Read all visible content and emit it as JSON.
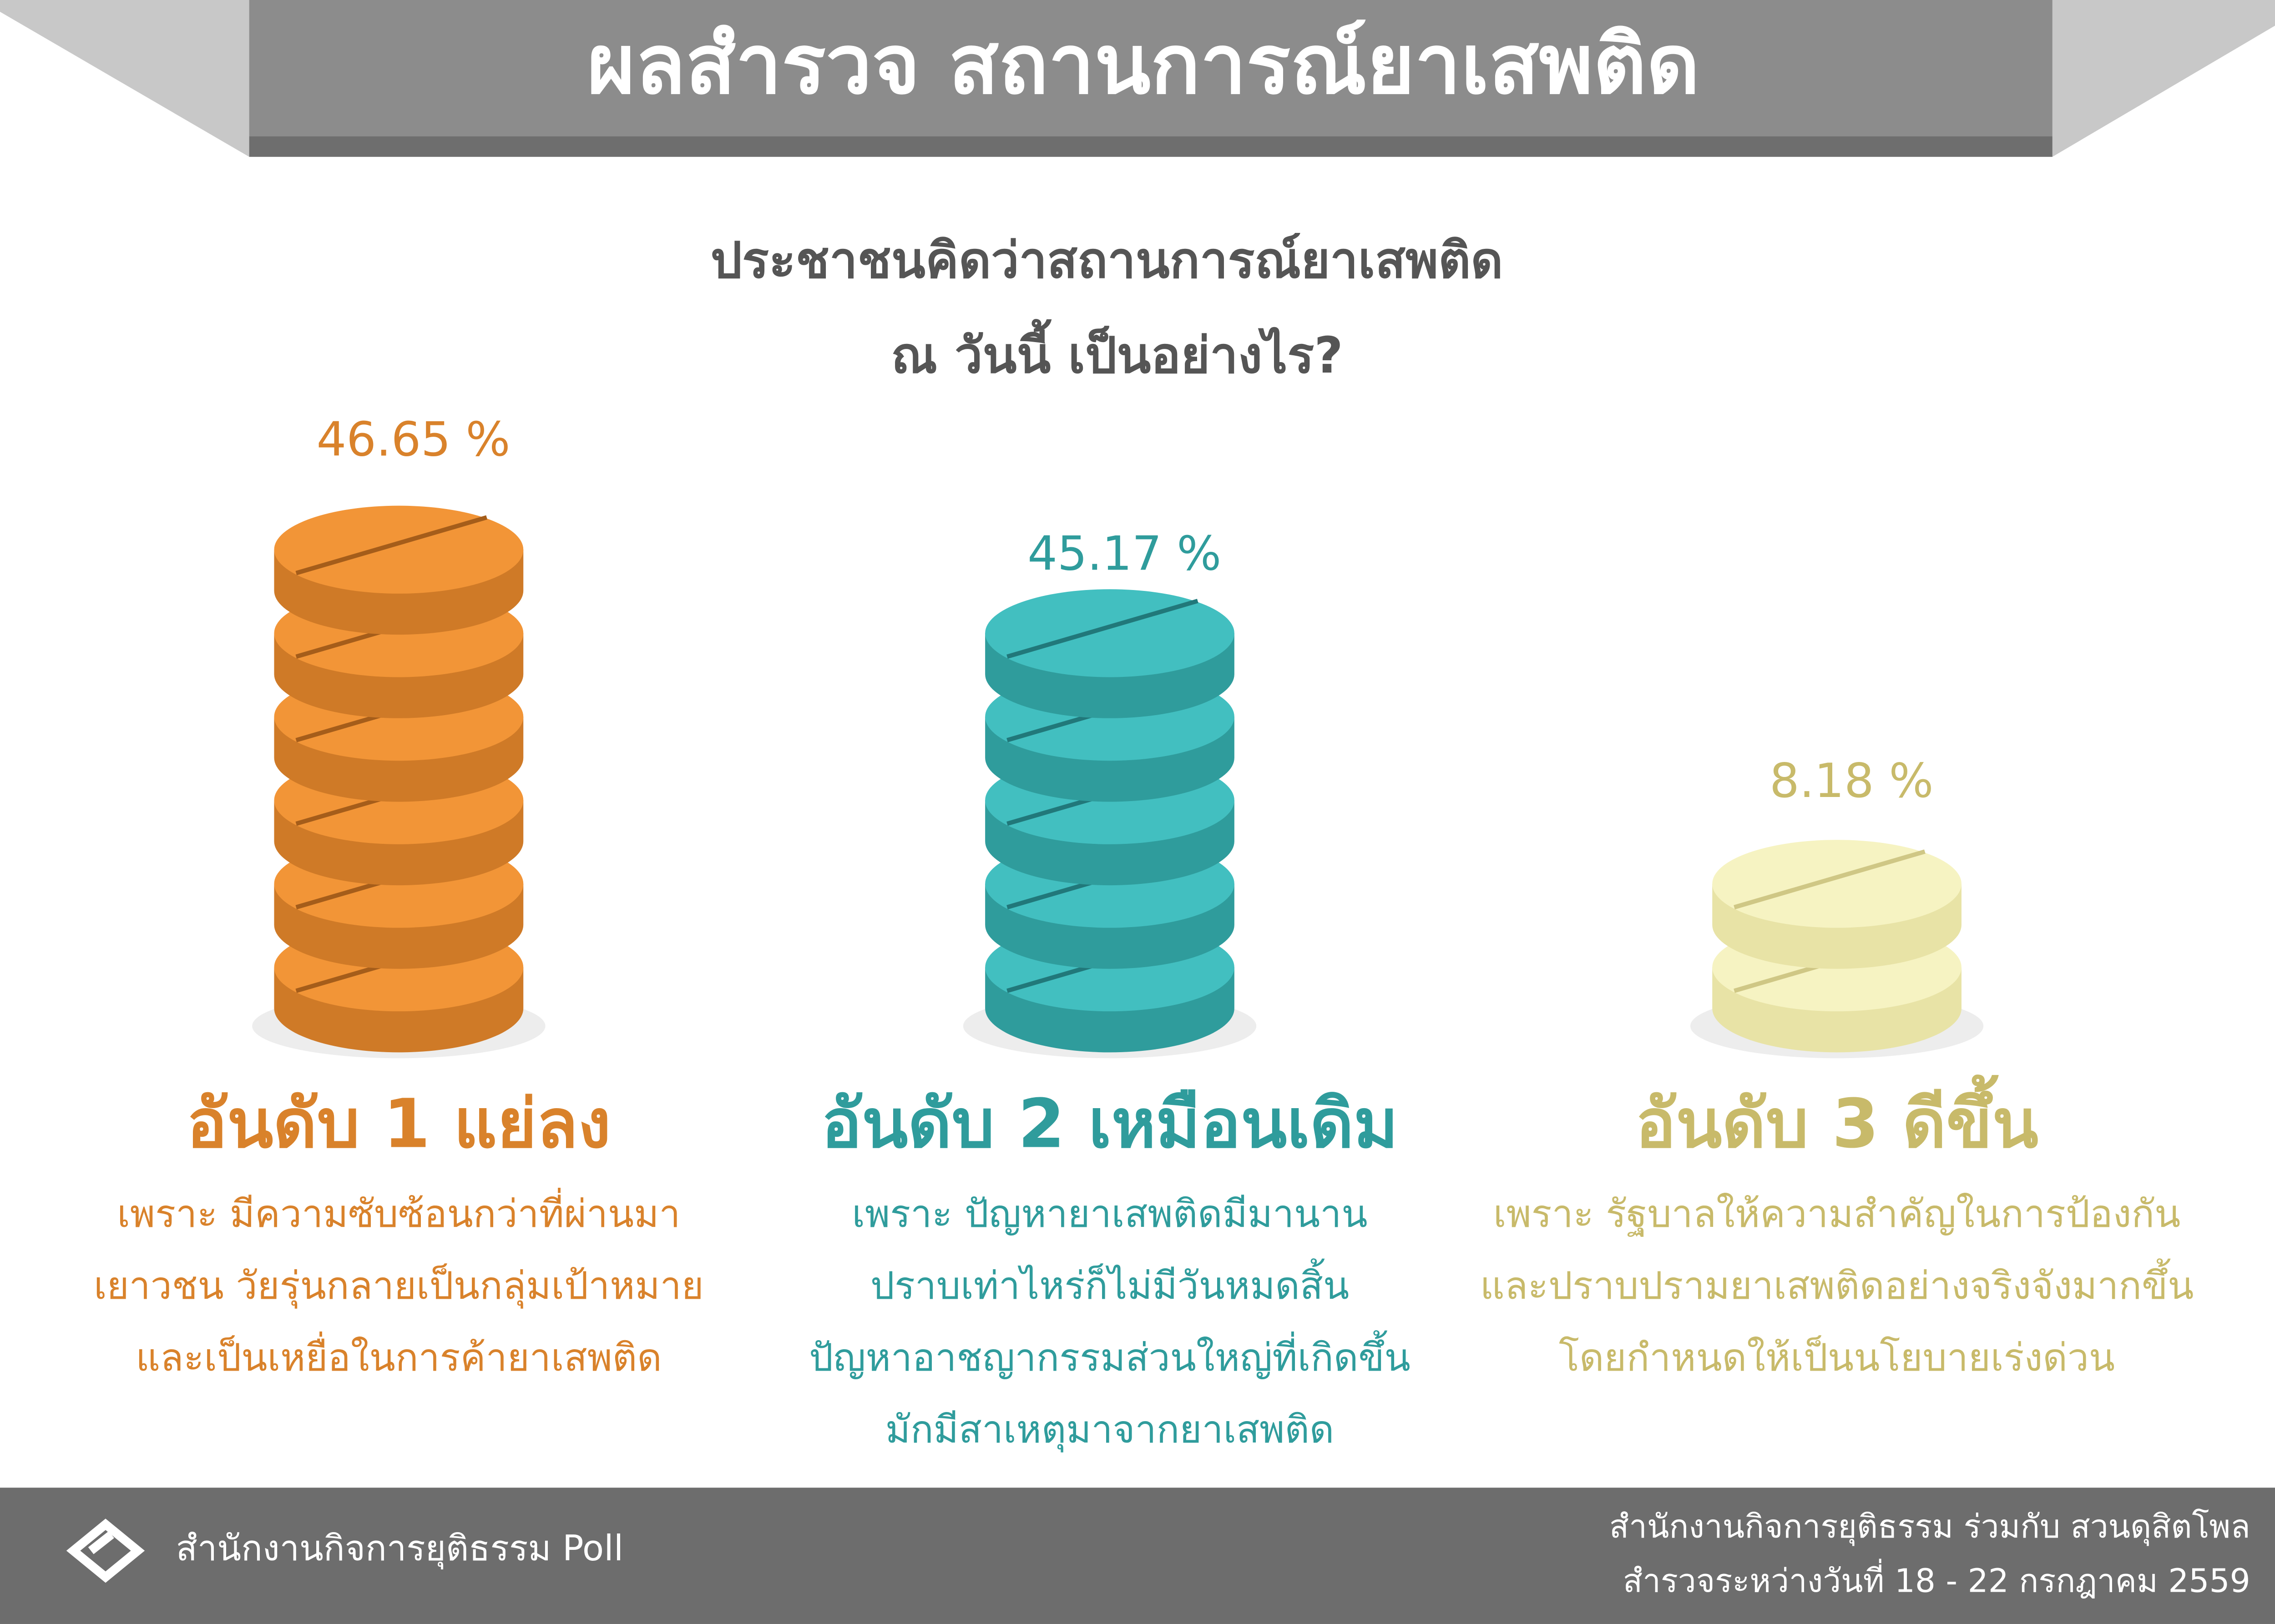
{
  "header": {
    "title": "ผลสำรวจ สถานการณ์ยาเสพติด"
  },
  "question": {
    "lines": [
      "ประชาชนคิดว่าสถานการณ์ยาเสพติด",
      "ณ วันนี้ เป็นอย่างไร?"
    ]
  },
  "items": [
    {
      "percent": "46.65 %",
      "heading": "อันดับ 1 แย่ลง",
      "reason": [
        "เพราะ มีความซับซ้อนกว่าที่ผ่านมา",
        "เยาวชน วัยรุ่นกลายเป็นกลุ่มเป้าหมาย",
        "และเป็นเหยื่อในการค้ายาเสพติด"
      ]
    },
    {
      "percent": "45.17 %",
      "heading": "อันดับ 2 เหมือนเดิม",
      "reason": [
        "เพราะ ปัญหายาเสพติดมีมานาน",
        "ปราบเท่าไหร่ก็ไม่มีวันหมดสิ้น",
        "ปัญหาอาชญากรรมส่วนใหญ่ที่เกิดขึ้น",
        "มักมีสาเหตุมาจากยาเสพติด"
      ]
    },
    {
      "percent": "8.18 %",
      "heading": "อันดับ 3 ดีขึ้น",
      "reason": [
        "เพราะ รัฐบาลให้ความสำคัญในการป้องกัน",
        "และปราบปรามยาเสพติดอย่างจริงจังมากขึ้น",
        "โดยกำหนดให้เป็นนโยบายเร่งด่วน"
      ]
    }
  ],
  "footer": {
    "left": "สำนักงานกิจการยุติธรรม Poll",
    "right": [
      "สำนักงานกิจการยุติธรรม ร่วมกับ สวนดุสิตโพล",
      "สำรวจระหว่างวันที่ 18 - 22 กรกฎาคม 2559"
    ]
  }
}
